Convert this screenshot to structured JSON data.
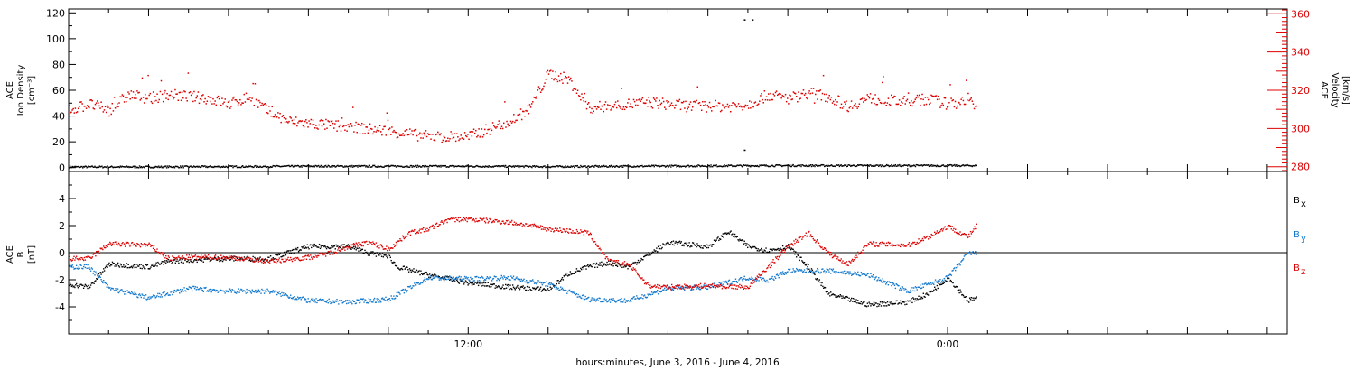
{
  "chart_data": {
    "type": "scatter",
    "xlabel": "hours:minutes, June  3, 2016 - June  4, 2016",
    "x_range_hours": [
      2,
      32.5
    ],
    "x_ticks": [
      {
        "hour": 12,
        "label": "12:00"
      },
      {
        "hour": 24,
        "label": "0:00"
      }
    ],
    "panels": [
      {
        "name": "plasma",
        "left_axis_title": [
          "ACE",
          "Ion Density",
          "[cm⁻³]"
        ],
        "right_axis_title": [
          "ACE",
          "Velocity",
          "[km/s]"
        ],
        "ylim_left": [
          -3,
          123
        ],
        "ylim_right": [
          277.5,
          362.5
        ],
        "yticks_left": [
          0,
          20,
          40,
          60,
          80,
          100,
          120
        ],
        "yticks_right": [
          280,
          300,
          320,
          340,
          360
        ],
        "right_axis_color": "#dd0000",
        "series": [
          {
            "axis": "left",
            "color": "#000000",
            "points": [
              [
                2,
                1
              ],
              [
                4,
                1
              ],
              [
                6,
                1.2
              ],
              [
                8,
                1.5
              ],
              [
                10,
                1.5
              ],
              [
                12,
                1.5
              ],
              [
                14,
                1.2
              ],
              [
                16,
                1.5
              ],
              [
                18,
                1.8
              ],
              [
                20,
                2
              ],
              [
                22,
                2
              ],
              [
                23,
                2
              ],
              [
                24.7,
                2
              ]
            ],
            "outliers": [
              [
                18.9,
                115
              ],
              [
                19.1,
                115
              ],
              [
                18.9,
                14
              ]
            ]
          },
          {
            "axis": "right",
            "color": "#dd0000",
            "points": [
              [
                2,
                310
              ],
              [
                2.5,
                313
              ],
              [
                3,
                310
              ],
              [
                3.5,
                318
              ],
              [
                4,
                316
              ],
              [
                4.5,
                318
              ],
              [
                5,
                317
              ],
              [
                5.5,
                316
              ],
              [
                6,
                313
              ],
              [
                6.5,
                317
              ],
              [
                7,
                309
              ],
              [
                7.5,
                304
              ],
              [
                8,
                303
              ],
              [
                9,
                301
              ],
              [
                10,
                299
              ],
              [
                11,
                296
              ],
              [
                12,
                296
              ],
              [
                12.5,
                300
              ],
              [
                13,
                304
              ],
              [
                13.5,
                310
              ],
              [
                14,
                329
              ],
              [
                14.5,
                326
              ],
              [
                15,
                311
              ],
              [
                15.5,
                312
              ],
              [
                16,
                313
              ],
              [
                16.5,
                314
              ],
              [
                17,
                313
              ],
              [
                17.5,
                312
              ],
              [
                18,
                312
              ],
              [
                18.5,
                312
              ],
              [
                19,
                313
              ],
              [
                19.5,
                318
              ],
              [
                20,
                316
              ],
              [
                20.5,
                319
              ],
              [
                21,
                317
              ],
              [
                21.5,
                312
              ],
              [
                22,
                316
              ],
              [
                22.5,
                315
              ],
              [
                23,
                314
              ],
              [
                23.5,
                316
              ],
              [
                24,
                313
              ],
              [
                24.5,
                316
              ],
              [
                24.7,
                310
              ]
            ]
          }
        ]
      },
      {
        "name": "magnetic-field",
        "left_axis_title": [
          "ACE",
          "B",
          "[nT]"
        ],
        "ylim": [
          -6,
          6
        ],
        "yticks": [
          -4,
          -2,
          0,
          2,
          4
        ],
        "zero_line": true,
        "legend": [
          {
            "label": "B",
            "sub": "x",
            "color": "#000000"
          },
          {
            "label": "B",
            "sub": "y",
            "color": "#1177cc"
          },
          {
            "label": "B",
            "sub": "z",
            "color": "#dd0000"
          }
        ],
        "series": [
          {
            "name": "Bx",
            "color": "#000000",
            "points": [
              [
                2,
                -2.3
              ],
              [
                2.5,
                -2.5
              ],
              [
                3,
                -0.8
              ],
              [
                4,
                -1.0
              ],
              [
                4.5,
                -0.6
              ],
              [
                5,
                -0.5
              ],
              [
                6,
                -0.4
              ],
              [
                7,
                -0.4
              ],
              [
                8,
                0.5
              ],
              [
                9,
                0.5
              ],
              [
                9.5,
                0
              ],
              [
                10,
                -0.2
              ],
              [
                10.2,
                -1
              ],
              [
                11,
                -1.6
              ],
              [
                12,
                -2.2
              ],
              [
                13,
                -2.5
              ],
              [
                14,
                -2.7
              ],
              [
                14.5,
                -1.5
              ],
              [
                15,
                -1.0
              ],
              [
                15.5,
                -0.7
              ],
              [
                16,
                -1.0
              ],
              [
                17,
                0.8
              ],
              [
                18,
                0.5
              ],
              [
                18.5,
                1.6
              ],
              [
                19,
                0.5
              ],
              [
                19.5,
                0.2
              ],
              [
                20,
                0.5
              ],
              [
                20.5,
                -1.0
              ],
              [
                21,
                -3.0
              ],
              [
                22,
                -3.8
              ],
              [
                23,
                -3.6
              ],
              [
                23.5,
                -3.0
              ],
              [
                24,
                -1.8
              ],
              [
                24.5,
                -3.5
              ],
              [
                24.7,
                -3.3
              ]
            ]
          },
          {
            "name": "By",
            "color": "#1177cc",
            "points": [
              [
                2,
                -1.0
              ],
              [
                2.5,
                -1.0
              ],
              [
                3,
                -2.6
              ],
              [
                4,
                -3.3
              ],
              [
                5,
                -2.6
              ],
              [
                6,
                -2.8
              ],
              [
                7,
                -2.8
              ],
              [
                8,
                -3.5
              ],
              [
                9,
                -3.6
              ],
              [
                10,
                -3.4
              ],
              [
                11,
                -1.8
              ],
              [
                12,
                -1.9
              ],
              [
                13,
                -1.8
              ],
              [
                14,
                -2.3
              ],
              [
                15,
                -3.4
              ],
              [
                16,
                -3.5
              ],
              [
                17,
                -2.6
              ],
              [
                18,
                -2.5
              ],
              [
                19,
                -1.8
              ],
              [
                19.5,
                -2.0
              ],
              [
                20,
                -1.3
              ],
              [
                21,
                -1.3
              ],
              [
                22,
                -1.6
              ],
              [
                23,
                -2.8
              ],
              [
                24,
                -1.8
              ],
              [
                24.5,
                0
              ],
              [
                24.7,
                0
              ]
            ]
          },
          {
            "name": "Bz",
            "color": "#dd0000",
            "points": [
              [
                2,
                -0.4
              ],
              [
                2.5,
                -0.4
              ],
              [
                3,
                0.7
              ],
              [
                4,
                0.6
              ],
              [
                4.5,
                -0.4
              ],
              [
                5,
                -0.3
              ],
              [
                6,
                -0.3
              ],
              [
                7,
                -0.6
              ],
              [
                8,
                -0.3
              ],
              [
                8.5,
                0
              ],
              [
                9,
                0.5
              ],
              [
                9.5,
                0.8
              ],
              [
                10,
                0.3
              ],
              [
                10.5,
                1.5
              ],
              [
                11,
                1.8
              ],
              [
                11.5,
                2.5
              ],
              [
                12,
                2.5
              ],
              [
                13,
                2.3
              ],
              [
                14,
                1.8
              ],
              [
                15,
                1.5
              ],
              [
                15.5,
                -0.6
              ],
              [
                16,
                -0.8
              ],
              [
                16.5,
                -2.4
              ],
              [
                17,
                -2.5
              ],
              [
                18,
                -2.4
              ],
              [
                19,
                -2.5
              ],
              [
                19.5,
                -1.0
              ],
              [
                20,
                0.5
              ],
              [
                20.5,
                1.5
              ],
              [
                21,
                0
              ],
              [
                21.5,
                -0.8
              ],
              [
                22,
                0.7
              ],
              [
                23,
                0.6
              ],
              [
                23.5,
                1.2
              ],
              [
                24,
                2.0
              ],
              [
                24.5,
                1.2
              ],
              [
                24.7,
                2.0
              ]
            ]
          }
        ]
      }
    ]
  }
}
